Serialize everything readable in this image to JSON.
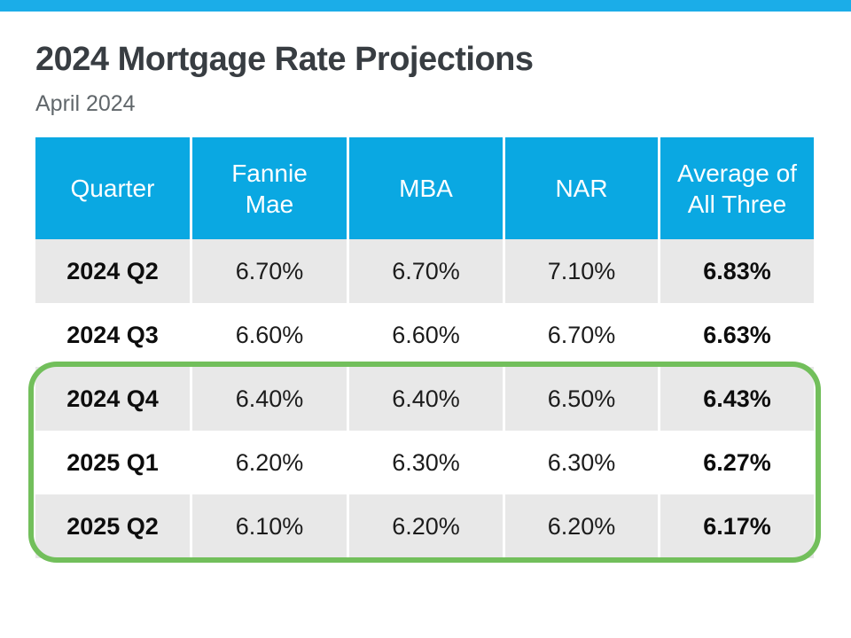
{
  "page": {
    "title": "2024 Mortgage Rate Projections",
    "subtitle": "April 2024"
  },
  "colors": {
    "topbar_cyan": "#1BADE8",
    "header_cyan": "#0AA8E2",
    "row_gray": "#E8E8E8",
    "row_white": "#FFFFFF",
    "highlight_green": "#72BF5B",
    "title_text": "#383D42",
    "subtitle_text": "#61676B"
  },
  "table": {
    "headers": [
      "Quarter",
      "Fannie Mae",
      "MBA",
      "NAR",
      "Average of All Three"
    ],
    "rows": [
      [
        "2024 Q2",
        "6.70%",
        "6.70%",
        "7.10%",
        "6.83%"
      ],
      [
        "2024 Q3",
        "6.60%",
        "6.60%",
        "6.70%",
        "6.63%"
      ],
      [
        "2024 Q4",
        "6.40%",
        "6.40%",
        "6.50%",
        "6.43%"
      ],
      [
        "2025 Q1",
        "6.20%",
        "6.30%",
        "6.30%",
        "6.27%"
      ],
      [
        "2025 Q2",
        "6.10%",
        "6.20%",
        "6.20%",
        "6.17%"
      ]
    ],
    "highlighted_rows": [
      "2024 Q4",
      "2025 Q1",
      "2025 Q2"
    ]
  },
  "chart_data": {
    "type": "table",
    "title": "2024 Mortgage Rate Projections",
    "subtitle": "April 2024",
    "columns": [
      "Quarter",
      "Fannie Mae",
      "MBA",
      "NAR",
      "Average of All Three"
    ],
    "rows": [
      {
        "quarter": "2024 Q2",
        "fannie_mae": 6.7,
        "mba": 6.7,
        "nar": 7.1,
        "average_of_all_three": 6.83
      },
      {
        "quarter": "2024 Q3",
        "fannie_mae": 6.6,
        "mba": 6.6,
        "nar": 6.7,
        "average_of_all_three": 6.63
      },
      {
        "quarter": "2024 Q4",
        "fannie_mae": 6.4,
        "mba": 6.4,
        "nar": 6.5,
        "average_of_all_three": 6.43
      },
      {
        "quarter": "2025 Q1",
        "fannie_mae": 6.2,
        "mba": 6.3,
        "nar": 6.3,
        "average_of_all_three": 6.27
      },
      {
        "quarter": "2025 Q2",
        "fannie_mae": 6.1,
        "mba": 6.2,
        "nar": 6.2,
        "average_of_all_three": 6.17
      }
    ],
    "units": "percent",
    "annotations": [
      "Green rounded box highlights rows 2024 Q4, 2025 Q1 and 2025 Q2"
    ],
    "layout_hints": {
      "header_background": "#0AA8E2",
      "zebra_striping": true,
      "first_stripe": "gray"
    }
  }
}
